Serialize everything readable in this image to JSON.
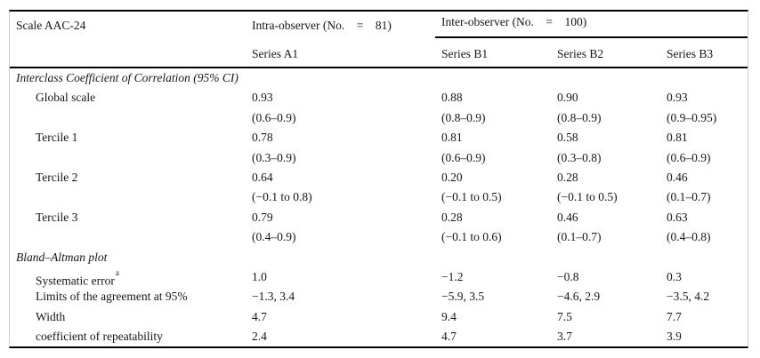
{
  "header": {
    "col1": "Scale AAC-24",
    "intra": "Intra-observer (No.    =    81)",
    "inter": "Inter-observer (No.    =    100)",
    "series_a1": "Series A1",
    "series_b1": "Series B1",
    "series_b2": "Series B2",
    "series_b3": "Series B3"
  },
  "rows": [
    {
      "type": "section",
      "label": "Interclass Coefficient of Correlation (95% CI)"
    },
    {
      "type": "data",
      "label": "Global scale",
      "values": [
        "0.93",
        "0.88",
        "0.90",
        "0.93"
      ]
    },
    {
      "type": "data",
      "label": "",
      "values": [
        "(0.6–0.9)",
        "(0.8–0.9)",
        "(0.8–0.9)",
        "(0.9–0.95)"
      ]
    },
    {
      "type": "data",
      "label": "Tercile 1",
      "values": [
        "0.78",
        "0.81",
        "0.58",
        "0.81"
      ]
    },
    {
      "type": "data",
      "label": "",
      "values": [
        "(0.3–0.9)",
        "(0.6–0.9)",
        "(0.3–0.8)",
        "(0.6–0.9)"
      ]
    },
    {
      "type": "data",
      "label": "Tercile 2",
      "values": [
        "0.64",
        "0.20",
        "0.28",
        "0.46"
      ]
    },
    {
      "type": "data",
      "label": "",
      "values": [
        "(−0.1 to 0.8)",
        "(−0.1 to 0.5)",
        "(−0.1 to 0.5)",
        "(0.1–0.7)"
      ]
    },
    {
      "type": "data",
      "label": "Tercile 3",
      "values": [
        "0.79",
        "0.28",
        "0.46",
        "0.63"
      ]
    },
    {
      "type": "data",
      "label": "",
      "values": [
        "(0.4–0.9)",
        "(−0.1 to 0.6)",
        "(0.1–0.7)",
        "(0.4–0.8)"
      ]
    },
    {
      "type": "section",
      "label": "Bland–Altman plot"
    },
    {
      "type": "data",
      "label": "Systematic error",
      "sup": "a",
      "values": [
        "1.0",
        "−1.2",
        "−0.8",
        "0.3"
      ]
    },
    {
      "type": "data",
      "label": "Limits of the agreement at 95%",
      "values": [
        "−1.3, 3.4",
        "−5.9, 3.5",
        "−4.6, 2.9",
        "−3.5, 4.2"
      ]
    },
    {
      "type": "data",
      "label": "Width",
      "values": [
        "4.7",
        "9.4",
        "7.5",
        "7.7"
      ]
    },
    {
      "type": "data",
      "label": "coefficient of repeatability",
      "values": [
        "2.4",
        "4.7",
        "3.7",
        "3.9"
      ]
    }
  ],
  "colors": {
    "rule": "#000000",
    "side_border": "#cccccc",
    "text": "#161616",
    "background": "#ffffff"
  }
}
